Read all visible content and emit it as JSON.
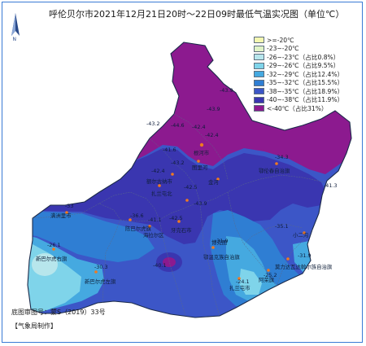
{
  "title": "呼伦贝尔市2021年12月21日20时～22日09时最低气温实况图（单位℃）",
  "compass_icon": "north-arrow-icon",
  "legend": [
    {
      "label": ">=-20℃",
      "color": "#f4f7b0"
    },
    {
      "label": "-23~-20℃",
      "color": "#dff3c6"
    },
    {
      "label": "-26~-23℃（占比0.8%）",
      "color": "#b7e6ec"
    },
    {
      "label": "-29~-26℃（占比9.5%）",
      "color": "#7fd4ea"
    },
    {
      "label": "-32~-29℃（占比12.4%）",
      "color": "#45a9e0"
    },
    {
      "label": "-35~-32℃（占比15.5%）",
      "color": "#2f7ed3"
    },
    {
      "label": "-38~-35℃（占比18.9%）",
      "color": "#3c56c7"
    },
    {
      "label": "-40~-38℃（占比11.9%）",
      "color": "#3a36b0"
    },
    {
      "label": "<-40℃（占比31%）",
      "color": "#8c1a8f"
    }
  ],
  "places": {
    "manzhouli": "满洲里市",
    "xinyou": "新巴尔虎右旗",
    "xinzuo": "新巴尔虎左旗",
    "chenqi": "陈巴尔虎旗",
    "hailar": "海拉尔区",
    "ewenke": "鄂温克族自治旗",
    "yakeshi": "牙克石市",
    "genhe": "根河市",
    "ergun": "额尔古纳市",
    "elunchun": "鄂伦春自治旗",
    "zhalantun": "扎兰屯市",
    "arong": "阿荣旗",
    "molidawa": "莫力达瓦达斡尔族自治旗",
    "boketu": "博克图",
    "xiaoergou": "小二沟",
    "tuli": "图里河",
    "jinhe": "金河",
    "zhalantun_north": "扎兰屯北"
  },
  "values": {
    "v1": "-43.9",
    "v2": "-43.9",
    "v3": "-43.2",
    "v4": "-44.6",
    "v5": "-42.4",
    "v6": "-42.4",
    "v7": "-43.2",
    "v8": "-42.4",
    "v9": "-41.6",
    "v10": "-33",
    "v11": "-26.1",
    "v12": "-36.6",
    "v13": "-41.1",
    "v14": "-43.9",
    "v15": "-42.5",
    "v16": "-30.3",
    "v17": "-40.1",
    "v18": "-31.9",
    "v19": "-34.3",
    "v20": "-35.1",
    "v21": "-25.2",
    "v22": "-24.1",
    "v23": "-31.9",
    "v24": "-41.3",
    "v25": "-42.5"
  },
  "map_no": "底图审图号：蒙S（2019）33号",
  "credit": "【气象局制作】"
}
